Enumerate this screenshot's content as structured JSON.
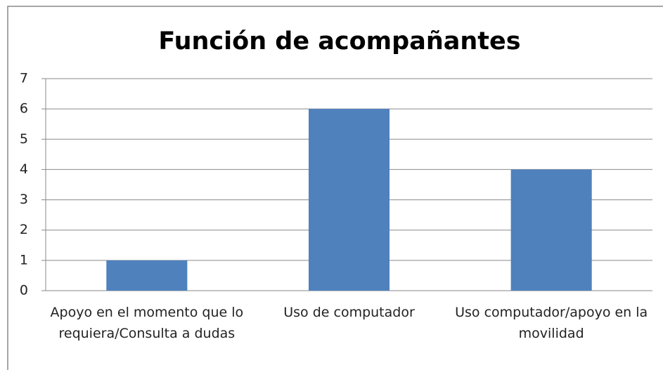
{
  "chart_data": {
    "type": "bar",
    "title": "Función de acompañantes",
    "categories": [
      "Apoyo en el momento que lo requiera/Consulta a dudas",
      "Uso de computador",
      "Uso computador/apoyo en la movilidad"
    ],
    "values": [
      1,
      6,
      4
    ],
    "color": "#4f81bd",
    "ylim": [
      0,
      7
    ],
    "yticks": [
      0,
      1,
      2,
      3,
      4,
      5,
      6,
      7
    ],
    "grid": true
  }
}
